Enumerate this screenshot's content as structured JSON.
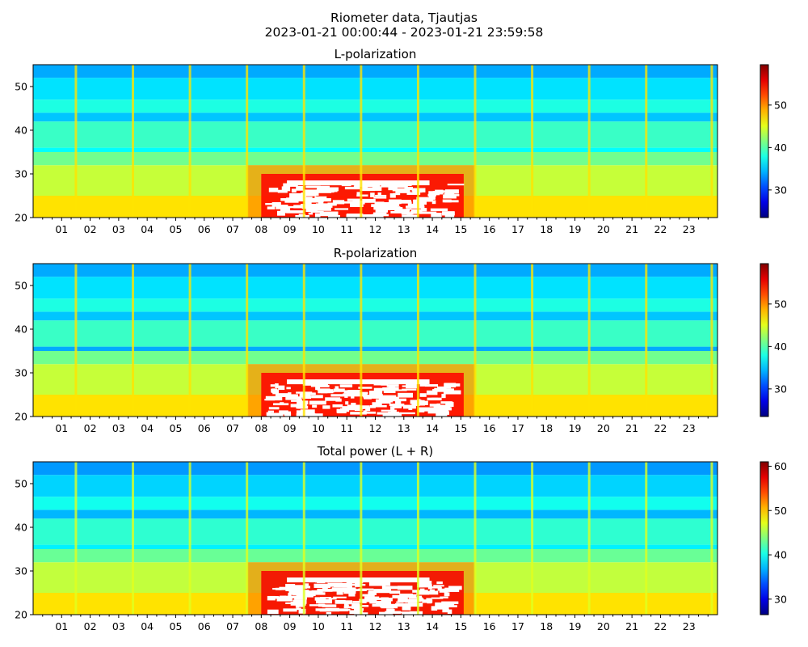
{
  "figure": {
    "title_line1": "Riometer data, Tjautjas",
    "title_line2": "2023-01-21 00:00:44 - 2023-01-21 23:59:58"
  },
  "chart_data": [
    {
      "type": "heatmap",
      "title": "L-polarization",
      "xlabel": "",
      "ylabel": "",
      "xlim": [
        0,
        24
      ],
      "ylim": [
        20,
        55
      ],
      "x_ticklabels": [
        "01",
        "02",
        "03",
        "04",
        "05",
        "06",
        "07",
        "08",
        "09",
        "10",
        "11",
        "12",
        "13",
        "14",
        "15",
        "16",
        "17",
        "18",
        "19",
        "20",
        "21",
        "22",
        "23"
      ],
      "y_ticks": [
        20,
        30,
        40,
        50
      ],
      "colorbar": {
        "colormap": "jet",
        "range": [
          23.5,
          59.5
        ],
        "ticks": [
          30,
          40,
          50
        ]
      },
      "vertical_stripes_hours": [
        1.5,
        3.5,
        5.5,
        7.5,
        9.5,
        11.5,
        13.5,
        15.5,
        17.5,
        19.5,
        21.5,
        23.8
      ],
      "values": [
        {
          "freq_range": [
            20,
            25
          ],
          "level": 47
        },
        {
          "freq_range": [
            25,
            32
          ],
          "level": 44
        },
        {
          "freq_range": [
            32,
            35
          ],
          "level": 41
        },
        {
          "freq_range": [
            35,
            36
          ],
          "level": 37
        },
        {
          "freq_range": [
            36,
            42
          ],
          "level": 39
        },
        {
          "freq_range": [
            42,
            44
          ],
          "level": 35
        },
        {
          "freq_range": [
            44,
            47
          ],
          "level": 38
        },
        {
          "freq_range": [
            47,
            52
          ],
          "level": 36
        },
        {
          "freq_range": [
            52,
            55
          ],
          "level": 34
        }
      ],
      "saturated_region": {
        "time_range": [
          7.5,
          15.5
        ],
        "freq_range": [
          20,
          30
        ],
        "level": 55
      }
    },
    {
      "type": "heatmap",
      "title": "R-polarization",
      "xlabel": "",
      "ylabel": "",
      "xlim": [
        0,
        24
      ],
      "ylim": [
        20,
        55
      ],
      "x_ticklabels": [
        "01",
        "02",
        "03",
        "04",
        "05",
        "06",
        "07",
        "08",
        "09",
        "10",
        "11",
        "12",
        "13",
        "14",
        "15",
        "16",
        "17",
        "18",
        "19",
        "20",
        "21",
        "22",
        "23"
      ],
      "y_ticks": [
        20,
        30,
        40,
        50
      ],
      "colorbar": {
        "colormap": "jet",
        "range": [
          23.5,
          59.5
        ],
        "ticks": [
          30,
          40,
          50
        ]
      },
      "vertical_stripes_hours": [
        1.5,
        3.5,
        5.5,
        7.5,
        9.5,
        11.5,
        13.5,
        15.5,
        17.5,
        19.5,
        21.5,
        23.8
      ],
      "values": [
        {
          "freq_range": [
            20,
            25
          ],
          "level": 47
        },
        {
          "freq_range": [
            25,
            32
          ],
          "level": 44
        },
        {
          "freq_range": [
            32,
            35
          ],
          "level": 41
        },
        {
          "freq_range": [
            35,
            36
          ],
          "level": 34
        },
        {
          "freq_range": [
            36,
            42
          ],
          "level": 39
        },
        {
          "freq_range": [
            42,
            44
          ],
          "level": 35
        },
        {
          "freq_range": [
            44,
            47
          ],
          "level": 38
        },
        {
          "freq_range": [
            47,
            52
          ],
          "level": 36
        },
        {
          "freq_range": [
            52,
            55
          ],
          "level": 34
        }
      ],
      "saturated_region": {
        "time_range": [
          7.5,
          15.5
        ],
        "freq_range": [
          20,
          30
        ],
        "level": 55
      }
    },
    {
      "type": "heatmap",
      "title": "Total power (L + R)",
      "xlabel": "",
      "ylabel": "",
      "xlim": [
        0,
        24
      ],
      "ylim": [
        20,
        55
      ],
      "x_ticklabels": [
        "01",
        "02",
        "03",
        "04",
        "05",
        "06",
        "07",
        "08",
        "09",
        "10",
        "11",
        "12",
        "13",
        "14",
        "15",
        "16",
        "17",
        "18",
        "19",
        "20",
        "21",
        "22",
        "23"
      ],
      "y_ticks": [
        20,
        30,
        40,
        50
      ],
      "colorbar": {
        "colormap": "jet",
        "range": [
          26.5,
          61
        ],
        "ticks": [
          30,
          40,
          50,
          60
        ]
      },
      "vertical_stripes_hours": [
        1.5,
        3.5,
        5.5,
        7.5,
        9.5,
        11.5,
        13.5,
        15.5,
        17.5,
        19.5,
        21.5,
        23.8
      ],
      "values": [
        {
          "freq_range": [
            20,
            25
          ],
          "level": 49
        },
        {
          "freq_range": [
            25,
            32
          ],
          "level": 46
        },
        {
          "freq_range": [
            32,
            35
          ],
          "level": 43
        },
        {
          "freq_range": [
            35,
            36
          ],
          "level": 39
        },
        {
          "freq_range": [
            36,
            42
          ],
          "level": 41
        },
        {
          "freq_range": [
            42,
            44
          ],
          "level": 37
        },
        {
          "freq_range": [
            44,
            47
          ],
          "level": 40
        },
        {
          "freq_range": [
            47,
            52
          ],
          "level": 38
        },
        {
          "freq_range": [
            52,
            55
          ],
          "level": 36
        }
      ],
      "saturated_region": {
        "time_range": [
          7.5,
          15.5
        ],
        "freq_range": [
          20,
          30
        ],
        "level": 57
      }
    }
  ]
}
